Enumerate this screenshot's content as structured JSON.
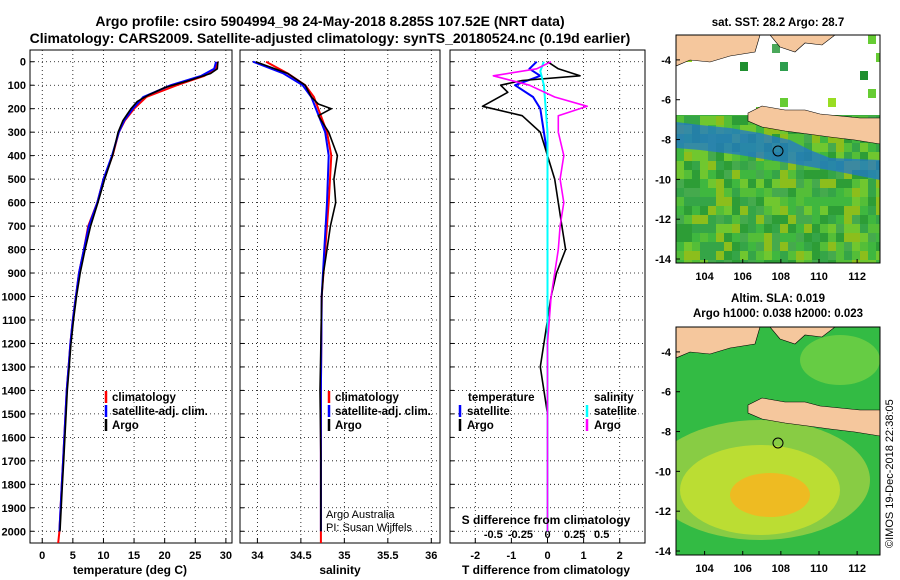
{
  "header": {
    "line1": "Argo profile: csiro 5904994_98 24-May-2018 8.285S 107.52E (NRT data)",
    "line2": "Climatology: CARS2009. Satellite-adjusted climatology: synTS_20180524.nc (0.19d earlier)"
  },
  "colors": {
    "climatology": "#ff0000",
    "satellite": "#0000ff",
    "argo": "#000000",
    "sal_satellite": "#00ffff",
    "sal_argo": "#ff00ff",
    "land": "#f5c79d"
  },
  "depth_axis": {
    "ticks": [
      0,
      100,
      200,
      300,
      400,
      500,
      600,
      700,
      800,
      900,
      1000,
      1100,
      1200,
      1300,
      1400,
      1500,
      1600,
      1700,
      1800,
      1900,
      2000
    ]
  },
  "panels": {
    "temperature": {
      "xlabel": "temperature (deg C)",
      "ticks": [
        "0",
        "5",
        "10",
        "15",
        "20",
        "25",
        "30"
      ],
      "legend": [
        "climatology",
        "satellite-adj. clim.",
        "Argo"
      ]
    },
    "salinity": {
      "xlabel": "salinity",
      "ticks": [
        "34",
        "34.5",
        "35",
        "35.5",
        "36"
      ],
      "legend": [
        "climatology",
        "satellite-adj. clim.",
        "Argo"
      ],
      "credit1": "Argo Australia",
      "credit2": "PI: Susan Wijffels"
    },
    "difference": {
      "xlabel": "T difference from climatology",
      "top_label": "S difference from climatology",
      "t_ticks": [
        "-2",
        "-1",
        "0",
        "1",
        "2"
      ],
      "s_ticks": [
        "-0.5",
        "-0.25",
        "0",
        "0.25",
        "0.5"
      ],
      "legend_t_title": "temperature",
      "legend_s_title": "salinity",
      "legend_t": [
        "satellite",
        "Argo"
      ],
      "legend_s": [
        "satellite",
        "Argo"
      ]
    }
  },
  "maps": {
    "sst_title": "sat. SST: 28.2 Argo: 28.7",
    "sla_title1": "Altim. SLA: 0.019",
    "sla_title2": "Argo h1000: 0.038 h2000: 0.023",
    "lat_ticks": [
      "-4",
      "-6",
      "-8",
      "-10",
      "-12",
      "-14"
    ],
    "lon_ticks": [
      "104",
      "106",
      "108",
      "110",
      "112"
    ]
  },
  "footer": {
    "stamp": "©IMOS 19-Dec-2018 22:38:05"
  },
  "chart_data": [
    {
      "type": "line",
      "title": "",
      "xlabel": "temperature (deg C)",
      "ylabel": "",
      "xlim": [
        -2,
        31
      ],
      "ylim": [
        2050,
        0
      ],
      "series": [
        {
          "name": "climatology",
          "points": [
            [
              28.7,
              0
            ],
            [
              28.3,
              30
            ],
            [
              26.5,
              60
            ],
            [
              22,
              100
            ],
            [
              17,
              150
            ],
            [
              15,
              200
            ],
            [
              13.5,
              250
            ],
            [
              12.5,
              300
            ],
            [
              11.5,
              400
            ],
            [
              10,
              500
            ],
            [
              9,
              600
            ],
            [
              7.5,
              700
            ],
            [
              6.8,
              800
            ],
            [
              6,
              900
            ],
            [
              5.5,
              1000
            ],
            [
              5,
              1100
            ],
            [
              4.6,
              1200
            ],
            [
              4.3,
              1300
            ],
            [
              4,
              1400
            ],
            [
              3.8,
              1500
            ],
            [
              3.6,
              1600
            ],
            [
              3.4,
              1700
            ],
            [
              3.2,
              1800
            ],
            [
              3,
              1900
            ],
            [
              2.8,
              2000
            ],
            [
              2.6,
              2050
            ]
          ]
        },
        {
          "name": "satellite-adj. clim.",
          "points": [
            [
              28.4,
              0
            ],
            [
              28.1,
              30
            ],
            [
              26,
              60
            ],
            [
              21,
              100
            ],
            [
              16.5,
              150
            ],
            [
              14.8,
              200
            ],
            [
              13.4,
              250
            ],
            [
              12.5,
              300
            ],
            [
              11.4,
              400
            ],
            [
              10,
              500
            ],
            [
              9,
              600
            ],
            [
              7.6,
              700
            ],
            [
              6.8,
              800
            ],
            [
              6,
              900
            ],
            [
              5.5,
              1000
            ],
            [
              5,
              1100
            ],
            [
              4.6,
              1200
            ],
            [
              4.3,
              1300
            ],
            [
              4,
              1400
            ],
            [
              3.8,
              1500
            ],
            [
              3.6,
              1600
            ],
            [
              3.4,
              1700
            ],
            [
              3.2,
              1800
            ],
            [
              3,
              1900
            ],
            [
              2.8,
              2000
            ]
          ]
        },
        {
          "name": "Argo",
          "points": [
            [
              28.7,
              0
            ],
            [
              28.6,
              30
            ],
            [
              27.5,
              50
            ],
            [
              24,
              80
            ],
            [
              20,
              110
            ],
            [
              17.5,
              140
            ],
            [
              15.5,
              170
            ],
            [
              14.5,
              200
            ],
            [
              13.2,
              250
            ],
            [
              12.4,
              300
            ],
            [
              11.5,
              400
            ],
            [
              10.2,
              500
            ],
            [
              9.1,
              600
            ],
            [
              7.9,
              700
            ],
            [
              7,
              800
            ],
            [
              6.2,
              900
            ],
            [
              5.6,
              1000
            ],
            [
              5.1,
              1100
            ],
            [
              4.7,
              1200
            ],
            [
              4.4,
              1300
            ],
            [
              4.1,
              1400
            ],
            [
              3.9,
              1500
            ],
            [
              3.7,
              1600
            ],
            [
              3.5,
              1700
            ],
            [
              3.3,
              1800
            ],
            [
              3.1,
              1900
            ],
            [
              2.9,
              2000
            ]
          ]
        }
      ]
    },
    {
      "type": "line",
      "title": "",
      "xlabel": "salinity",
      "ylabel": "",
      "xlim": [
        33.8,
        36.1
      ],
      "ylim": [
        2050,
        0
      ],
      "series": [
        {
          "name": "climatology",
          "points": [
            [
              34.1,
              0
            ],
            [
              34.35,
              50
            ],
            [
              34.55,
              100
            ],
            [
              34.65,
              150
            ],
            [
              34.8,
              300
            ],
            [
              34.85,
              400
            ],
            [
              34.82,
              600
            ],
            [
              34.78,
              800
            ],
            [
              34.74,
              1000
            ],
            [
              34.73,
              1400
            ],
            [
              34.73,
              2000
            ],
            [
              34.73,
              2050
            ]
          ]
        },
        {
          "name": "satellite-adj. clim.",
          "points": [
            [
              33.95,
              0
            ],
            [
              34.3,
              50
            ],
            [
              34.52,
              100
            ],
            [
              34.62,
              150
            ],
            [
              34.78,
              300
            ],
            [
              34.82,
              400
            ],
            [
              34.8,
              600
            ],
            [
              34.77,
              800
            ],
            [
              34.74,
              1000
            ],
            [
              34.73,
              1400
            ],
            [
              34.73,
              2000
            ]
          ]
        },
        {
          "name": "Argo",
          "points": [
            [
              33.98,
              0
            ],
            [
              34.35,
              50
            ],
            [
              34.55,
              100
            ],
            [
              34.62,
              150
            ],
            [
              34.7,
              180
            ],
            [
              34.85,
              200
            ],
            [
              34.7,
              230
            ],
            [
              34.82,
              300
            ],
            [
              34.92,
              400
            ],
            [
              34.88,
              500
            ],
            [
              34.9,
              600
            ],
            [
              34.84,
              700
            ],
            [
              34.8,
              800
            ],
            [
              34.76,
              900
            ],
            [
              34.74,
              1000
            ],
            [
              34.73,
              1200
            ],
            [
              34.72,
              1400
            ],
            [
              34.73,
              1700
            ],
            [
              34.73,
              2000
            ]
          ]
        }
      ]
    },
    {
      "type": "line",
      "title": "",
      "xlabel": "T difference from climatology",
      "ylabel": "",
      "xlim": [
        -2.7,
        2.7
      ],
      "ylim": [
        2050,
        0
      ],
      "series": [
        {
          "name": "temperature satellite",
          "points": [
            [
              -0.3,
              0
            ],
            [
              -0.5,
              30
            ],
            [
              -0.2,
              60
            ],
            [
              -0.9,
              100
            ],
            [
              -0.4,
              150
            ],
            [
              -0.2,
              200
            ],
            [
              -0.1,
              300
            ],
            [
              0,
              400
            ],
            [
              0,
              600
            ],
            [
              0,
              800
            ],
            [
              0,
              1000
            ],
            [
              0,
              1400
            ],
            [
              0,
              2000
            ]
          ]
        },
        {
          "name": "temperature Argo",
          "points": [
            [
              0,
              0
            ],
            [
              0.3,
              30
            ],
            [
              0.9,
              60
            ],
            [
              -0.7,
              80
            ],
            [
              -1.3,
              100
            ],
            [
              -1.1,
              130
            ],
            [
              -1.8,
              190
            ],
            [
              -0.7,
              230
            ],
            [
              -0.2,
              300
            ],
            [
              0,
              400
            ],
            [
              0.2,
              500
            ],
            [
              0.3,
              600
            ],
            [
              0.4,
              700
            ],
            [
              0.5,
              800
            ],
            [
              0.25,
              900
            ],
            [
              0.1,
              1000
            ],
            [
              0,
              1100
            ],
            [
              -0.1,
              1200
            ],
            [
              -0.2,
              1300
            ],
            [
              -0.1,
              1400
            ],
            [
              0,
              1500
            ],
            [
              0,
              1600
            ],
            [
              0,
              1800
            ],
            [
              0,
              2000
            ]
          ]
        },
        {
          "name": "salinity satellite",
          "points": [
            [
              -0.1,
              0
            ],
            [
              -0.2,
              40
            ],
            [
              -0.1,
              100
            ],
            [
              -0.05,
              200
            ],
            [
              0,
              300
            ],
            [
              0,
              500
            ],
            [
              0,
              700
            ],
            [
              0,
              1000
            ],
            [
              0,
              1400
            ],
            [
              0,
              2000
            ]
          ]
        },
        {
          "name": "salinity Argo",
          "points": [
            [
              0.1,
              0
            ],
            [
              -0.3,
              30
            ],
            [
              -1.5,
              60
            ],
            [
              -0.5,
              100
            ],
            [
              0.2,
              150
            ],
            [
              1.1,
              190
            ],
            [
              0.3,
              230
            ],
            [
              0.3,
              300
            ],
            [
              0.45,
              400
            ],
            [
              0.35,
              500
            ],
            [
              0.45,
              600
            ],
            [
              0.35,
              700
            ],
            [
              0.3,
              800
            ],
            [
              0.2,
              900
            ],
            [
              0.1,
              1000
            ],
            [
              0.05,
              1100
            ],
            [
              0,
              1200
            ],
            [
              0,
              1400
            ],
            [
              0,
              1600
            ],
            [
              0,
              2000
            ]
          ]
        }
      ]
    }
  ]
}
